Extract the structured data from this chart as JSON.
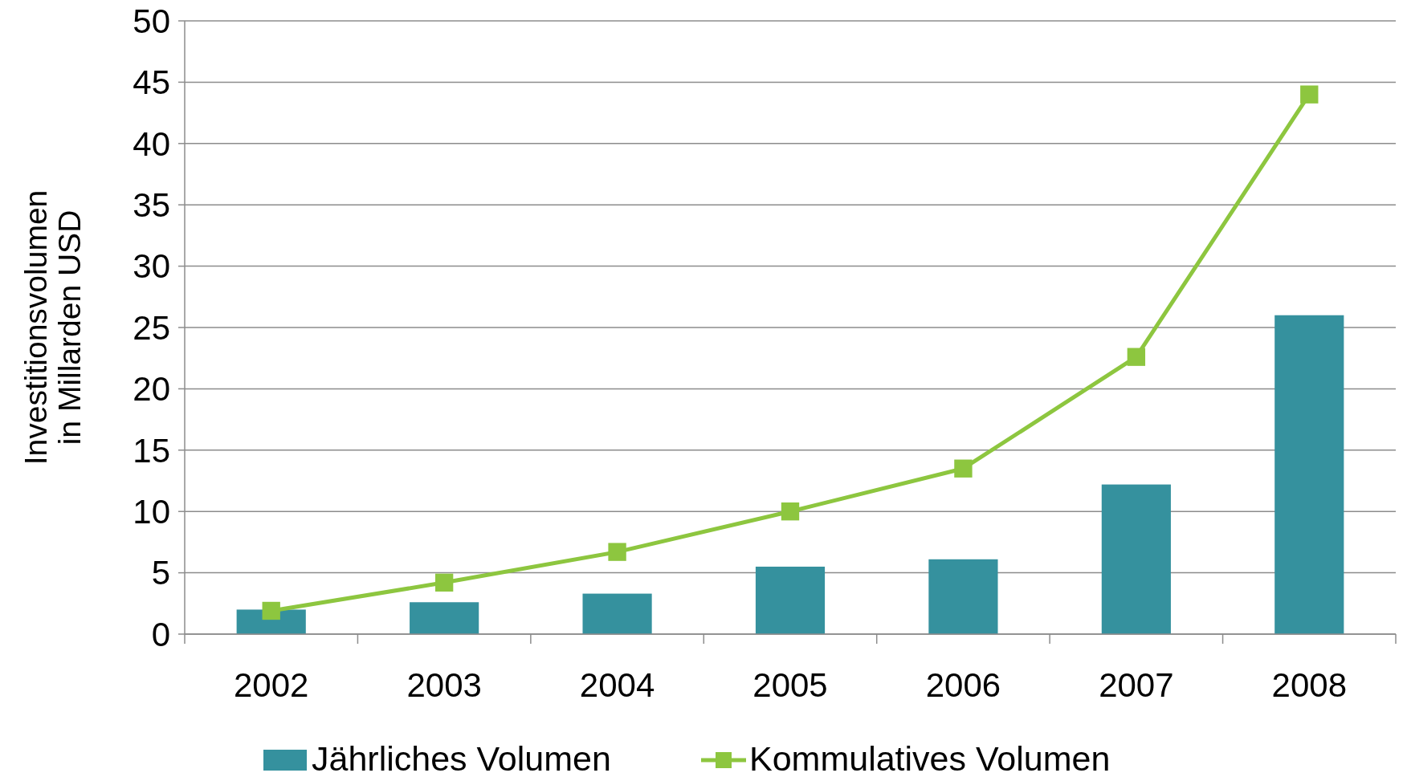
{
  "chart_data": {
    "type": "bar",
    "ylabel": "Investitionsvolumen\nin Millarden USD",
    "categories": [
      "2002",
      "2003",
      "2004",
      "2005",
      "2006",
      "2007",
      "2008"
    ],
    "series": [
      {
        "name": "Jährliches Volumen",
        "color": "#35919e",
        "values": [
          2.0,
          2.6,
          3.3,
          5.5,
          6.1,
          12.2,
          26.0
        ]
      },
      {
        "name": "Kommulatives Volumen",
        "type": "line",
        "color": "#8dc63f",
        "values": [
          1.9,
          4.2,
          6.7,
          10.0,
          13.5,
          22.6,
          44.0
        ]
      }
    ],
    "ylim": [
      0,
      50
    ],
    "yticks": [
      0,
      5,
      10,
      15,
      20,
      25,
      30,
      35,
      40,
      45,
      50
    ],
    "grid": "y",
    "legend": "bottom",
    "marker": "square",
    "line_style": "solid"
  }
}
